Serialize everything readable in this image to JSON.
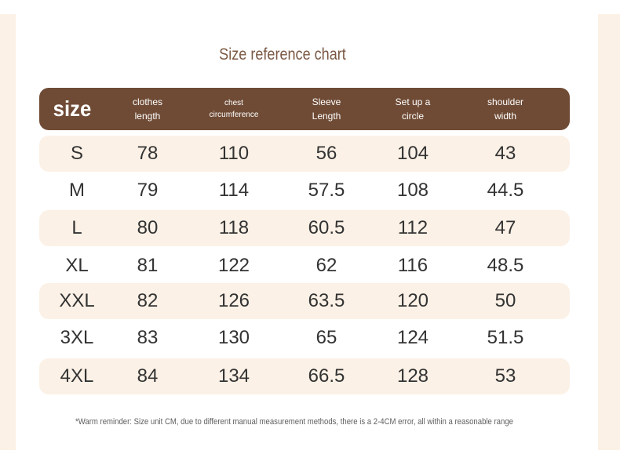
{
  "title": "Size reference chart",
  "headers": {
    "size": "size",
    "length_l1": "clothes",
    "length_l2": "length",
    "chest_l1": "chest",
    "chest_l2": "circumference",
    "sleeve_l1": "Sleeve",
    "sleeve_l2": "Length",
    "hem_l1": "Set up a",
    "hem_l2": "circle",
    "shoulder_l1": "shoulder",
    "shoulder_l2": "width"
  },
  "rows": [
    {
      "size": "S",
      "length": "78",
      "chest": "110",
      "sleeve": "56",
      "hem": "104",
      "shoulder": "43"
    },
    {
      "size": "M",
      "length": "79",
      "chest": "114",
      "sleeve": "57.5",
      "hem": "108",
      "shoulder": "44.5"
    },
    {
      "size": "L",
      "length": "80",
      "chest": "118",
      "sleeve": "60.5",
      "hem": "112",
      "shoulder": "47"
    },
    {
      "size": "XL",
      "length": "81",
      "chest": "122",
      "sleeve": "62",
      "hem": "116",
      "shoulder": "48.5"
    },
    {
      "size": "XXL",
      "length": "82",
      "chest": "126",
      "sleeve": "63.5",
      "hem": "120",
      "shoulder": "50"
    },
    {
      "size": "3XL",
      "length": "83",
      "chest": "130",
      "sleeve": "65",
      "hem": "124",
      "shoulder": "51.5"
    },
    {
      "size": "4XL",
      "length": "84",
      "chest": "134",
      "sleeve": "66.5",
      "hem": "128",
      "shoulder": "53"
    }
  ],
  "note": "*Warm reminder: Size unit CM, due to different manual measurement methods, there is a 2-4CM error, all within a reasonable range",
  "colors": {
    "header_bg": "#6f4b35",
    "row_shade": "#fbf1e6",
    "title": "#7a5843"
  }
}
